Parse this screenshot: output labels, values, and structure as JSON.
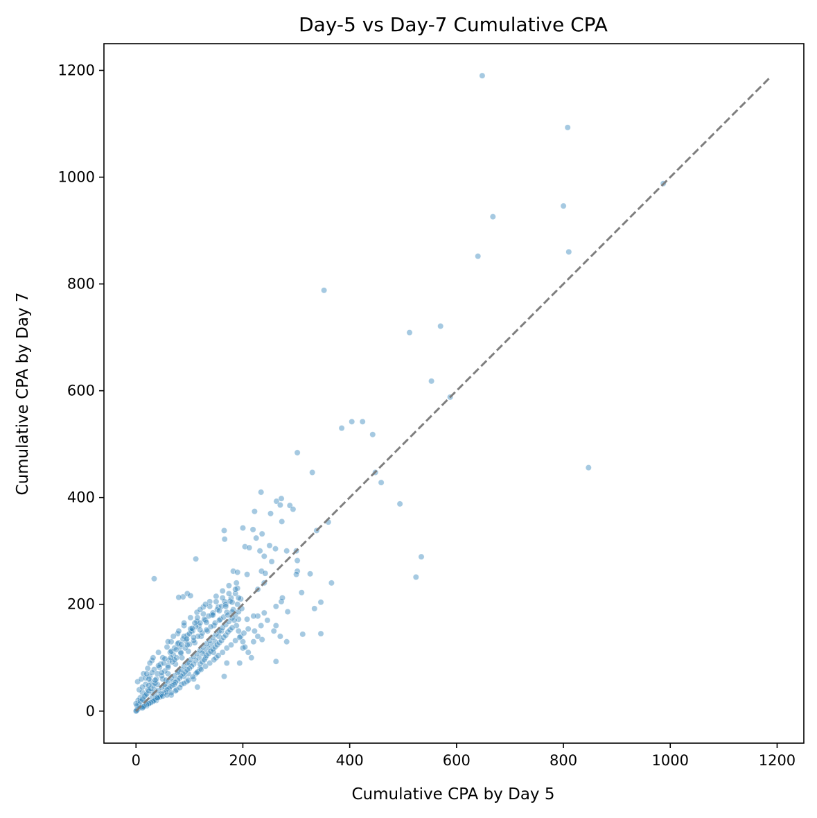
{
  "chart_data": {
    "type": "scatter",
    "title": "Day-5 vs Day-7 Cumulative CPA",
    "xlabel": "Cumulative CPA by Day 5",
    "ylabel": "Cumulative CPA by Day 7",
    "xlim": [
      -60,
      1250
    ],
    "ylim": [
      -60,
      1250
    ],
    "xticks": [
      0,
      200,
      400,
      600,
      800,
      1000,
      1200
    ],
    "yticks": [
      0,
      200,
      400,
      600,
      800,
      1000,
      1200
    ],
    "xtick_labels": [
      "0",
      "200",
      "400",
      "600",
      "800",
      "1000",
      "1200"
    ],
    "ytick_labels": [
      "0",
      "200",
      "400",
      "600",
      "800",
      "1000",
      "1200"
    ],
    "grid": false,
    "point_color": "#1f77b4",
    "point_opacity": 0.4,
    "reference_line": {
      "style": "dashed",
      "color": "#7f7f7f",
      "from": [
        0,
        0
      ],
      "to": [
        1185,
        1185
      ]
    },
    "points": [
      [
        648,
        1190
      ],
      [
        808,
        1093
      ],
      [
        987,
        988
      ],
      [
        800,
        946
      ],
      [
        668,
        926
      ],
      [
        810,
        860
      ],
      [
        640,
        852
      ],
      [
        352,
        788
      ],
      [
        570,
        721
      ],
      [
        512,
        709
      ],
      [
        553,
        618
      ],
      [
        588,
        588
      ],
      [
        404,
        542
      ],
      [
        424,
        542
      ],
      [
        385,
        530
      ],
      [
        443,
        518
      ],
      [
        302,
        484
      ],
      [
        330,
        447
      ],
      [
        448,
        447
      ],
      [
        459,
        428
      ],
      [
        847,
        456
      ],
      [
        234,
        410
      ],
      [
        263,
        393
      ],
      [
        272,
        398
      ],
      [
        270,
        386
      ],
      [
        288,
        385
      ],
      [
        294,
        378
      ],
      [
        494,
        388
      ],
      [
        222,
        374
      ],
      [
        252,
        370
      ],
      [
        360,
        354
      ],
      [
        338,
        338
      ],
      [
        165,
        338
      ],
      [
        200,
        343
      ],
      [
        219,
        340
      ],
      [
        236,
        332
      ],
      [
        225,
        324
      ],
      [
        166,
        322
      ],
      [
        273,
        355
      ],
      [
        282,
        300
      ],
      [
        232,
        300
      ],
      [
        240,
        290
      ],
      [
        204,
        308
      ],
      [
        212,
        306
      ],
      [
        250,
        310
      ],
      [
        300,
        300
      ],
      [
        261,
        304
      ],
      [
        302,
        282
      ],
      [
        534,
        289
      ],
      [
        524,
        251
      ],
      [
        302,
        262
      ],
      [
        326,
        257
      ],
      [
        300,
        256
      ],
      [
        182,
        262
      ],
      [
        190,
        260
      ],
      [
        208,
        256
      ],
      [
        112,
        285
      ],
      [
        254,
        280
      ],
      [
        235,
        262
      ],
      [
        242,
        258
      ],
      [
        366,
        240
      ],
      [
        188,
        240
      ],
      [
        190,
        230
      ],
      [
        228,
        228
      ],
      [
        34,
        248
      ],
      [
        96,
        220
      ],
      [
        88,
        214
      ],
      [
        102,
        216
      ],
      [
        80,
        213
      ],
      [
        240,
        240
      ],
      [
        272,
        205
      ],
      [
        310,
        222
      ],
      [
        346,
        204
      ],
      [
        274,
        212
      ],
      [
        262,
        196
      ],
      [
        262,
        160
      ],
      [
        240,
        184
      ],
      [
        228,
        178
      ],
      [
        284,
        186
      ],
      [
        334,
        192
      ],
      [
        208,
        172
      ],
      [
        220,
        178
      ],
      [
        192,
        172
      ],
      [
        312,
        144
      ],
      [
        346,
        145
      ],
      [
        236,
        134
      ],
      [
        220,
        130
      ],
      [
        200,
        118
      ],
      [
        194,
        90
      ],
      [
        170,
        90
      ],
      [
        165,
        65
      ],
      [
        262,
        93
      ],
      [
        150,
        100
      ],
      [
        145,
        110
      ],
      [
        130,
        100
      ],
      [
        120,
        80
      ],
      [
        115,
        45
      ],
      [
        100,
        90
      ],
      [
        98,
        70
      ],
      [
        95,
        55
      ],
      [
        90,
        65
      ],
      [
        85,
        50
      ],
      [
        80,
        75
      ],
      [
        76,
        40
      ],
      [
        70,
        55
      ],
      [
        66,
        30
      ],
      [
        60,
        70
      ],
      [
        55,
        45
      ],
      [
        50,
        60
      ],
      [
        45,
        30
      ],
      [
        40,
        50
      ],
      [
        38,
        20
      ],
      [
        35,
        40
      ],
      [
        30,
        25
      ],
      [
        28,
        55
      ],
      [
        25,
        15
      ],
      [
        22,
        40
      ],
      [
        20,
        10
      ],
      [
        18,
        30
      ],
      [
        15,
        20
      ],
      [
        12,
        35
      ],
      [
        10,
        8
      ],
      [
        8,
        25
      ],
      [
        6,
        12
      ],
      [
        5,
        5
      ],
      [
        4,
        20
      ],
      [
        3,
        3
      ],
      [
        2,
        10
      ],
      [
        1,
        1
      ],
      [
        0,
        0
      ],
      [
        0,
        14
      ],
      [
        3,
        55
      ],
      [
        6,
        40
      ],
      [
        10,
        60
      ],
      [
        14,
        70
      ],
      [
        18,
        50
      ],
      [
        22,
        80
      ],
      [
        26,
        65
      ],
      [
        30,
        95
      ],
      [
        34,
        78
      ],
      [
        38,
        60
      ],
      [
        42,
        110
      ],
      [
        46,
        88
      ],
      [
        50,
        100
      ],
      [
        54,
        75
      ],
      [
        58,
        120
      ],
      [
        62,
        95
      ],
      [
        66,
        130
      ],
      [
        70,
        105
      ],
      [
        74,
        88
      ],
      [
        78,
        145
      ],
      [
        82,
        120
      ],
      [
        86,
        100
      ],
      [
        90,
        160
      ],
      [
        94,
        132
      ],
      [
        98,
        112
      ],
      [
        102,
        175
      ],
      [
        106,
        150
      ],
      [
        110,
        128
      ],
      [
        114,
        185
      ],
      [
        118,
        160
      ],
      [
        122,
        140
      ],
      [
        126,
        195
      ],
      [
        130,
        170
      ],
      [
        134,
        150
      ],
      [
        138,
        205
      ],
      [
        142,
        180
      ],
      [
        146,
        160
      ],
      [
        150,
        215
      ],
      [
        154,
        195
      ],
      [
        158,
        172
      ],
      [
        162,
        225
      ],
      [
        166,
        205
      ],
      [
        170,
        185
      ],
      [
        174,
        235
      ],
      [
        178,
        212
      ],
      [
        182,
        190
      ],
      [
        186,
        220
      ],
      [
        190,
        200
      ],
      [
        196,
        210
      ],
      [
        160,
        150
      ],
      [
        155,
        140
      ],
      [
        148,
        130
      ],
      [
        140,
        125
      ],
      [
        135,
        118
      ],
      [
        128,
        112
      ],
      [
        124,
        108
      ],
      [
        118,
        100
      ],
      [
        112,
        95
      ],
      [
        108,
        88
      ],
      [
        104,
        84
      ],
      [
        100,
        80
      ],
      [
        96,
        78
      ],
      [
        92,
        74
      ],
      [
        88,
        70
      ],
      [
        84,
        66
      ],
      [
        82,
        62
      ],
      [
        78,
        58
      ],
      [
        74,
        54
      ],
      [
        72,
        50
      ],
      [
        68,
        48
      ],
      [
        64,
        46
      ],
      [
        62,
        42
      ],
      [
        58,
        40
      ],
      [
        56,
        36
      ],
      [
        52,
        34
      ],
      [
        48,
        32
      ],
      [
        46,
        28
      ],
      [
        44,
        26
      ],
      [
        40,
        24
      ],
      [
        36,
        22
      ],
      [
        34,
        20
      ],
      [
        32,
        18
      ],
      [
        28,
        16
      ],
      [
        24,
        14
      ],
      [
        20,
        12
      ],
      [
        16,
        10
      ],
      [
        14,
        8
      ],
      [
        12,
        6
      ],
      [
        40,
        70
      ],
      [
        44,
        82
      ],
      [
        48,
        66
      ],
      [
        52,
        90
      ],
      [
        56,
        58
      ],
      [
        60,
        85
      ],
      [
        64,
        110
      ],
      [
        68,
        92
      ],
      [
        72,
        118
      ],
      [
        76,
        100
      ],
      [
        80,
        128
      ],
      [
        84,
        108
      ],
      [
        88,
        135
      ],
      [
        92,
        118
      ],
      [
        96,
        142
      ],
      [
        100,
        125
      ],
      [
        104,
        150
      ],
      [
        108,
        132
      ],
      [
        112,
        158
      ],
      [
        116,
        140
      ],
      [
        120,
        165
      ],
      [
        124,
        146
      ],
      [
        128,
        172
      ],
      [
        132,
        152
      ],
      [
        136,
        178
      ],
      [
        140,
        158
      ],
      [
        144,
        184
      ],
      [
        148,
        165
      ],
      [
        152,
        190
      ],
      [
        156,
        170
      ],
      [
        160,
        196
      ],
      [
        164,
        176
      ],
      [
        168,
        200
      ],
      [
        172,
        180
      ],
      [
        176,
        206
      ],
      [
        180,
        186
      ],
      [
        184,
        170
      ],
      [
        188,
        160
      ],
      [
        192,
        150
      ],
      [
        196,
        140
      ],
      [
        200,
        130
      ],
      [
        204,
        120
      ],
      [
        210,
        110
      ],
      [
        216,
        100
      ],
      [
        222,
        150
      ],
      [
        228,
        140
      ],
      [
        234,
        160
      ],
      [
        246,
        170
      ],
      [
        258,
        150
      ],
      [
        270,
        140
      ],
      [
        282,
        130
      ],
      [
        108,
        60
      ],
      [
        112,
        70
      ],
      [
        116,
        74
      ],
      [
        120,
        88
      ],
      [
        124,
        92
      ],
      [
        128,
        96
      ],
      [
        132,
        104
      ],
      [
        136,
        108
      ],
      [
        140,
        112
      ],
      [
        144,
        116
      ],
      [
        148,
        120
      ],
      [
        152,
        124
      ],
      [
        156,
        128
      ],
      [
        160,
        132
      ],
      [
        164,
        138
      ],
      [
        168,
        142
      ],
      [
        172,
        148
      ],
      [
        176,
        152
      ],
      [
        180,
        156
      ],
      [
        30,
        35
      ],
      [
        35,
        32
      ],
      [
        42,
        38
      ],
      [
        48,
        44
      ],
      [
        54,
        50
      ],
      [
        60,
        56
      ],
      [
        66,
        62
      ],
      [
        72,
        66
      ],
      [
        78,
        72
      ],
      [
        84,
        78
      ],
      [
        90,
        84
      ],
      [
        96,
        90
      ],
      [
        102,
        96
      ],
      [
        108,
        102
      ],
      [
        114,
        108
      ],
      [
        120,
        114
      ],
      [
        126,
        120
      ],
      [
        132,
        126
      ],
      [
        138,
        132
      ],
      [
        144,
        138
      ],
      [
        150,
        144
      ],
      [
        156,
        150
      ],
      [
        162,
        156
      ],
      [
        168,
        162
      ],
      [
        174,
        168
      ],
      [
        180,
        174
      ],
      [
        186,
        180
      ],
      [
        192,
        186
      ],
      [
        198,
        192
      ],
      [
        8,
        18
      ],
      [
        12,
        22
      ],
      [
        16,
        28
      ],
      [
        20,
        32
      ],
      [
        24,
        38
      ],
      [
        28,
        42
      ],
      [
        32,
        48
      ],
      [
        36,
        52
      ],
      [
        12,
        45
      ],
      [
        18,
        62
      ],
      [
        24,
        48
      ],
      [
        30,
        72
      ],
      [
        36,
        58
      ],
      [
        42,
        85
      ],
      [
        48,
        72
      ],
      [
        54,
        98
      ],
      [
        60,
        82
      ],
      [
        66,
        112
      ],
      [
        72,
        96
      ],
      [
        78,
        126
      ],
      [
        84,
        110
      ],
      [
        90,
        140
      ],
      [
        96,
        124
      ],
      [
        102,
        154
      ],
      [
        108,
        138
      ],
      [
        114,
        168
      ],
      [
        120,
        152
      ],
      [
        126,
        182
      ],
      [
        132,
        166
      ],
      [
        138,
        196
      ],
      [
        144,
        180
      ],
      [
        150,
        205
      ],
      [
        156,
        188
      ],
      [
        162,
        212
      ],
      [
        168,
        196
      ],
      [
        174,
        220
      ],
      [
        180,
        204
      ],
      [
        186,
        228
      ],
      [
        192,
        212
      ],
      [
        120,
        190
      ],
      [
        130,
        200
      ],
      [
        60,
        130
      ],
      [
        70,
        140
      ],
      [
        80,
        150
      ],
      [
        90,
        165
      ],
      [
        65,
        100
      ],
      [
        75,
        115
      ],
      [
        85,
        125
      ],
      [
        95,
        135
      ],
      [
        100,
        145
      ],
      [
        105,
        155
      ],
      [
        110,
        165
      ],
      [
        115,
        175
      ],
      [
        20,
        70
      ],
      [
        26,
        90
      ],
      [
        32,
        100
      ],
      [
        24,
        60
      ],
      [
        40,
        25
      ],
      [
        50,
        28
      ],
      [
        58,
        30
      ],
      [
        66,
        34
      ],
      [
        74,
        38
      ],
      [
        82,
        44
      ],
      [
        90,
        52
      ],
      [
        98,
        58
      ],
      [
        106,
        64
      ],
      [
        114,
        72
      ],
      [
        122,
        78
      ],
      [
        130,
        84
      ],
      [
        138,
        90
      ],
      [
        146,
        96
      ],
      [
        154,
        104
      ],
      [
        162,
        110
      ],
      [
        170,
        118
      ],
      [
        178,
        124
      ],
      [
        186,
        132
      ],
      [
        194,
        138
      ],
      [
        202,
        146
      ],
      [
        210,
        154
      ]
    ]
  }
}
